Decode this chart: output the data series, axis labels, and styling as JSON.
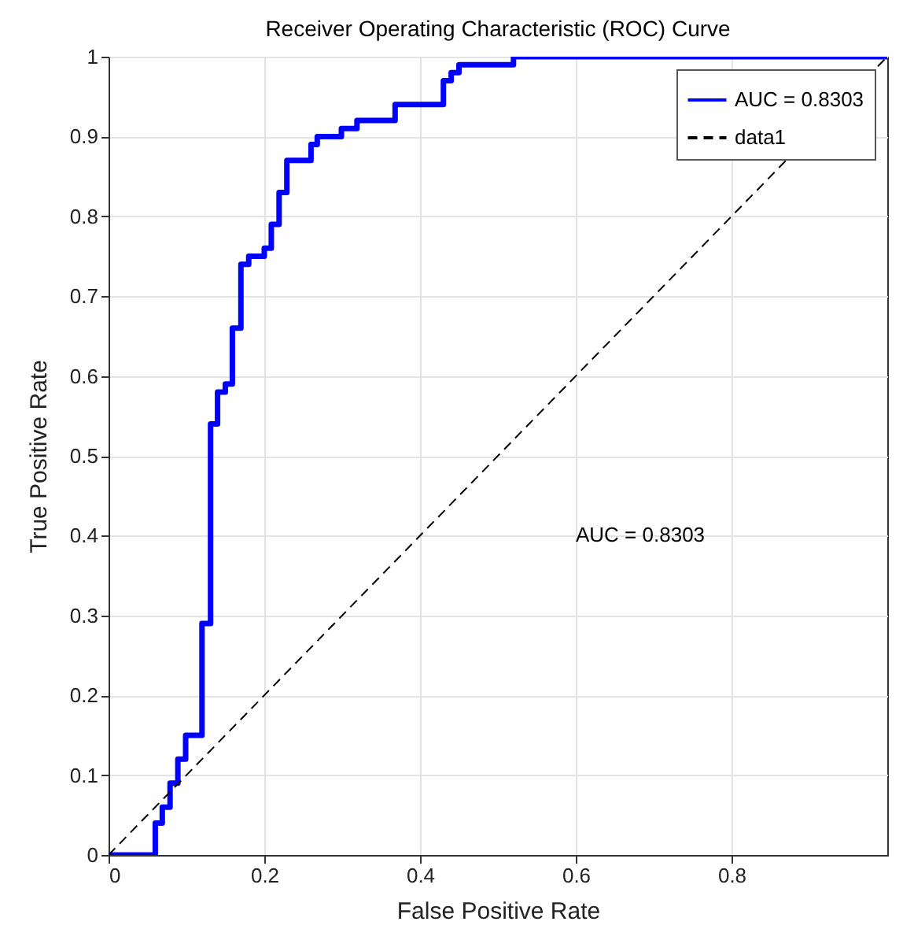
{
  "chart_data": {
    "type": "step",
    "title": "Receiver Operating Characteristic (ROC) Curve",
    "xlabel": "False Positive Rate",
    "ylabel": "True Positive Rate",
    "series": [
      {
        "name": "AUC = 0.8303",
        "color": "#0000ff",
        "type": "step",
        "line_style": "solid",
        "x": [
          0,
          0.06,
          0.069,
          0.079,
          0.089,
          0.099,
          0.12,
          0.131,
          0.14,
          0.15,
          0.159,
          0.17,
          0.18,
          0.2,
          0.209,
          0.219,
          0.229,
          0.26,
          0.268,
          0.299,
          0.319,
          0.368,
          0.43,
          0.44,
          0.45,
          0.52,
          1
        ],
        "values": [
          0,
          0.04,
          0.06,
          0.09,
          0.12,
          0.15,
          0.29,
          0.54,
          0.58,
          0.59,
          0.66,
          0.74,
          0.75,
          0.76,
          0.79,
          0.83,
          0.87,
          0.89,
          0.9,
          0.91,
          0.92,
          0.94,
          0.97,
          0.98,
          0.99,
          1,
          1
        ]
      },
      {
        "name": "data1",
        "color": "#000000",
        "type": "line",
        "line_style": "dashed",
        "x": [
          0,
          1
        ],
        "values": [
          0,
          1
        ]
      }
    ],
    "annotations": [
      "AUC = 0.8303"
    ],
    "xlim": [
      0,
      1
    ],
    "xticks": [
      0,
      0.2,
      0.4,
      0.6,
      0.8
    ],
    "ylim": [
      0,
      1
    ],
    "yticks": [
      0,
      0.1,
      0.2,
      0.3,
      0.4,
      0.5,
      0.6,
      0.7,
      0.8,
      0.9,
      1
    ],
    "grid": true,
    "legend": "top right"
  }
}
